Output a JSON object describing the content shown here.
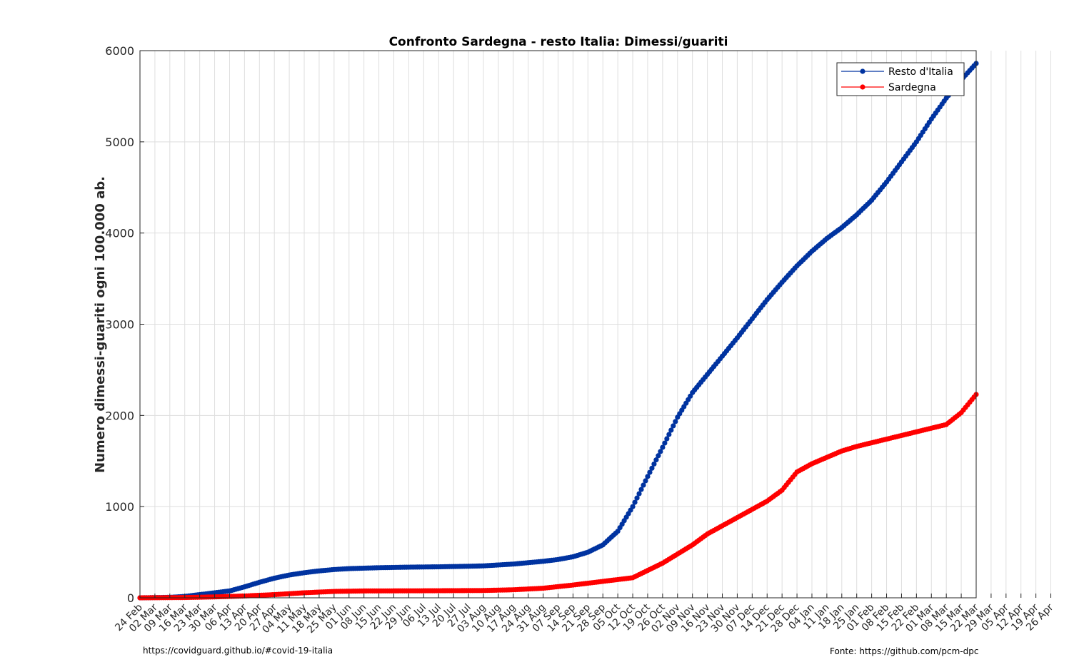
{
  "chart_data": {
    "type": "line",
    "title": "Confronto Sardegna - resto Italia: Dimessi/guariti",
    "ylabel": "Numero dimessi-guariti ogni 100.000 ab.",
    "xlabel": "",
    "ylim": [
      0,
      6000
    ],
    "yticks": [
      0,
      1000,
      2000,
      3000,
      4000,
      5000,
      6000
    ],
    "grid": true,
    "legend_position": "top-right",
    "x_tick_labels": [
      "24 Feb",
      "02 Mar",
      "09 Mar",
      "16 Mar",
      "23 Mar",
      "30 Mar",
      "06 Apr",
      "13 Apr",
      "20 Apr",
      "27 Apr",
      "04 May",
      "11 May",
      "18 May",
      "25 May",
      "01 Jun",
      "08 Jun",
      "15 Jun",
      "22 Jun",
      "29 Jun",
      "06 Jul",
      "13 Jul",
      "20 Jul",
      "27 Jul",
      "03 Aug",
      "10 Aug",
      "17 Aug",
      "24 Aug",
      "31 Aug",
      "07 Sep",
      "14 Sep",
      "21 Sep",
      "28 Sep",
      "05 Oct",
      "12 Oct",
      "19 Oct",
      "26 Oct",
      "02 Nov",
      "09 Nov",
      "16 Nov",
      "23 Nov",
      "30 Nov",
      "07 Dec",
      "14 Dec",
      "21 Dec",
      "28 Dec",
      "04 Jan",
      "11 Jan",
      "18 Jan",
      "25 Jan",
      "01 Feb",
      "08 Feb",
      "15 Feb",
      "22 Feb",
      "01 Mar",
      "08 Mar",
      "15 Mar",
      "22 Mar",
      "29 Mar",
      "05 Apr",
      "12 Apr",
      "19 Apr",
      "26 Apr"
    ],
    "series": [
      {
        "name": "Resto d'Italia",
        "color": "#0033a0",
        "points": [
          [
            0,
            0
          ],
          [
            14,
            5
          ],
          [
            21,
            15
          ],
          [
            28,
            35
          ],
          [
            35,
            55
          ],
          [
            42,
            75
          ],
          [
            49,
            120
          ],
          [
            56,
            170
          ],
          [
            63,
            215
          ],
          [
            70,
            250
          ],
          [
            77,
            275
          ],
          [
            84,
            295
          ],
          [
            91,
            310
          ],
          [
            98,
            320
          ],
          [
            105,
            325
          ],
          [
            112,
            330
          ],
          [
            119,
            333
          ],
          [
            126,
            336
          ],
          [
            133,
            338
          ],
          [
            140,
            340
          ],
          [
            147,
            343
          ],
          [
            154,
            346
          ],
          [
            161,
            350
          ],
          [
            168,
            360
          ],
          [
            175,
            370
          ],
          [
            182,
            385
          ],
          [
            189,
            400
          ],
          [
            196,
            420
          ],
          [
            203,
            450
          ],
          [
            210,
            500
          ],
          [
            217,
            580
          ],
          [
            224,
            730
          ],
          [
            231,
            1000
          ],
          [
            238,
            1330
          ],
          [
            245,
            1650
          ],
          [
            252,
            1980
          ],
          [
            259,
            2250
          ],
          [
            266,
            2450
          ],
          [
            273,
            2650
          ],
          [
            280,
            2850
          ],
          [
            287,
            3060
          ],
          [
            294,
            3270
          ],
          [
            301,
            3460
          ],
          [
            308,
            3640
          ],
          [
            315,
            3800
          ],
          [
            322,
            3940
          ],
          [
            329,
            4060
          ],
          [
            336,
            4200
          ],
          [
            343,
            4360
          ],
          [
            350,
            4560
          ],
          [
            357,
            4780
          ],
          [
            364,
            5000
          ],
          [
            371,
            5250
          ],
          [
            378,
            5480
          ],
          [
            385,
            5680
          ],
          [
            392,
            5860
          ]
        ]
      },
      {
        "name": "Sardegna",
        "color": "#ff0000",
        "points": [
          [
            0,
            0
          ],
          [
            21,
            3
          ],
          [
            35,
            10
          ],
          [
            49,
            20
          ],
          [
            63,
            35
          ],
          [
            77,
            55
          ],
          [
            91,
            70
          ],
          [
            105,
            75
          ],
          [
            133,
            77
          ],
          [
            161,
            80
          ],
          [
            175,
            88
          ],
          [
            189,
            105
          ],
          [
            203,
            140
          ],
          [
            217,
            180
          ],
          [
            231,
            220
          ],
          [
            238,
            300
          ],
          [
            245,
            380
          ],
          [
            252,
            480
          ],
          [
            259,
            580
          ],
          [
            266,
            700
          ],
          [
            273,
            790
          ],
          [
            280,
            880
          ],
          [
            287,
            970
          ],
          [
            294,
            1060
          ],
          [
            301,
            1180
          ],
          [
            308,
            1380
          ],
          [
            315,
            1470
          ],
          [
            322,
            1540
          ],
          [
            329,
            1610
          ],
          [
            336,
            1660
          ],
          [
            343,
            1700
          ],
          [
            350,
            1740
          ],
          [
            357,
            1780
          ],
          [
            364,
            1820
          ],
          [
            371,
            1860
          ],
          [
            378,
            1900
          ],
          [
            385,
            2030
          ],
          [
            392,
            2230
          ]
        ]
      }
    ]
  },
  "footer": {
    "left": "https://covidguard.github.io/#covid-19-italia",
    "right": "Fonte: https://github.com/pcm-dpc"
  }
}
